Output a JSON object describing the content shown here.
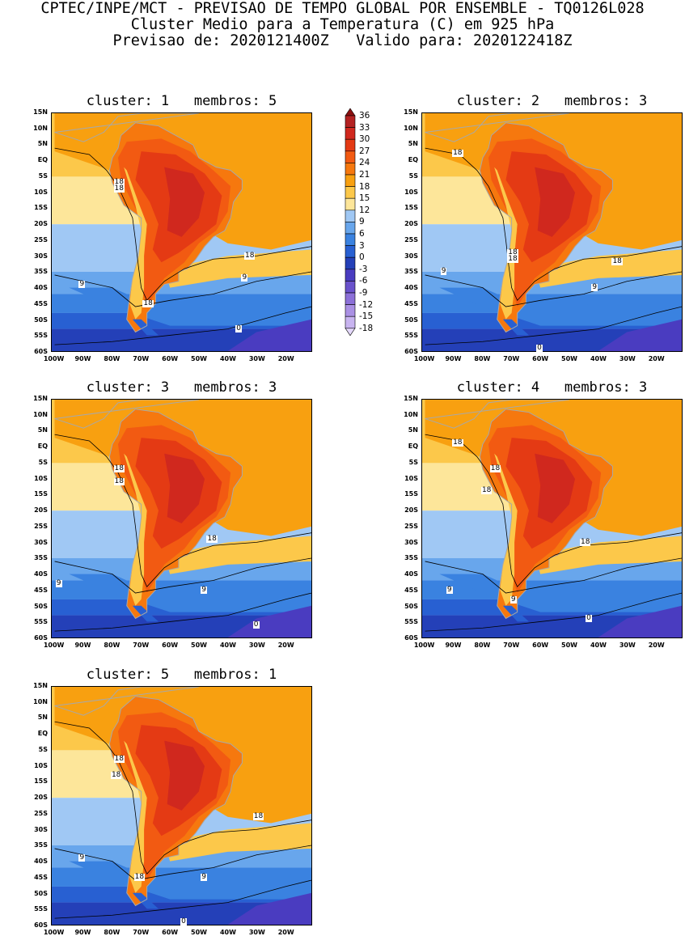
{
  "header": {
    "line1": "CPTEC/INPE/MCT - PREVISAO DE TEMPO GLOBAL POR ENSEMBLE - TQ0126L028",
    "line2": "Cluster Medio para a Temperatura (C) em 925 hPa",
    "line3": "Previsao de: 2020121400Z   Valido para: 2020122418Z"
  },
  "lat_labels": [
    "15N",
    "10N",
    "5N",
    "EQ",
    "5S",
    "10S",
    "15S",
    "20S",
    "25S",
    "30S",
    "35S",
    "40S",
    "45S",
    "50S",
    "55S",
    "60S"
  ],
  "lon_labels": [
    "100W",
    "90W",
    "80W",
    "70W",
    "60W",
    "50W",
    "40W",
    "30W",
    "20W"
  ],
  "map_extent": {
    "lon_min": -101,
    "lon_max": -11,
    "lat_min": -60,
    "lat_max": 15
  },
  "panels": [
    {
      "title": "cluster: 1   membros: 5",
      "contour_labels": [
        "18",
        "18",
        "18",
        "9",
        "18",
        "9",
        "0"
      ]
    },
    {
      "title": "cluster: 2   membros: 3",
      "contour_labels": [
        "18",
        "18",
        "18",
        "18",
        "9",
        "9",
        "0"
      ]
    },
    {
      "title": "cluster: 3   membros: 3",
      "contour_labels": [
        "18",
        "18",
        "18",
        "9",
        "9",
        "0"
      ]
    },
    {
      "title": "cluster: 4   membros: 3",
      "contour_labels": [
        "18",
        "18",
        "18",
        "18",
        "9",
        "9",
        "0"
      ]
    },
    {
      "title": "cluster: 5   membros: 1",
      "contour_labels": [
        "18",
        "18",
        "18",
        "9",
        "18",
        "9",
        "0"
      ]
    }
  ],
  "colorbar": {
    "levels": [
      "36",
      "33",
      "30",
      "27",
      "24",
      "21",
      "18",
      "15",
      "12",
      "9",
      "6",
      "3",
      "0",
      "-3",
      "-6",
      "-9",
      "-12",
      "-15",
      "-18"
    ],
    "colors": [
      "#8c1010",
      "#b42222",
      "#d0281e",
      "#e43a14",
      "#f25a12",
      "#f6780e",
      "#f8a010",
      "#fcc84a",
      "#fde69a",
      "#a0c8f4",
      "#68a6ec",
      "#3a82e0",
      "#2860d2",
      "#2440b8",
      "#4a3cc0",
      "#6a52cc",
      "#8c70d8",
      "#aa90e4",
      "#c8b4f0",
      "#e4d8fa"
    ],
    "units": "C"
  },
  "colors": {
    "land_boundaries": "#a8a8a8",
    "contour_line": "#000000",
    "background": "#ffffff"
  }
}
